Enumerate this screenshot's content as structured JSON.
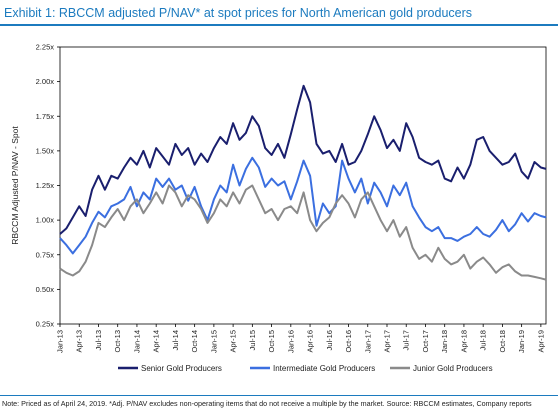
{
  "header": {
    "title": "Exhibit 1: RBCCM adjusted P/NAV* at spot prices for North American gold producers"
  },
  "footnote": "Note: Priced as of April 24, 2019. *Adj. P/NAV excludes non-operating items that do not receive a multiple by the market. Source: RBCCM estimates, Company reports",
  "chart_data": {
    "type": "line",
    "title": "",
    "ylabel": "RBCCM Adjusted P/NAV - Spot",
    "xlabel": "",
    "ylim": [
      0.25,
      2.25
    ],
    "yticks": [
      0.25,
      0.5,
      0.75,
      1.0,
      1.25,
      1.5,
      1.75,
      2.0,
      2.25
    ],
    "ytick_labels": [
      "0.25x",
      "0.50x",
      "0.75x",
      "1.00x",
      "1.25x",
      "1.50x",
      "1.75x",
      "2.00x",
      "2.25x"
    ],
    "xlim": [
      0,
      75.8
    ],
    "x_tick_positions": [
      0,
      3,
      6,
      9,
      12,
      15,
      18,
      21,
      24,
      27,
      30,
      33,
      36,
      39,
      42,
      45,
      48,
      51,
      54,
      57,
      60,
      63,
      66,
      69,
      72,
      75
    ],
    "x_tick_labels": [
      "Jan-13",
      "Apr-13",
      "Jul-13",
      "Oct-13",
      "Jan-14",
      "Apr-14",
      "Jul-14",
      "Oct-14",
      "Jan-15",
      "Apr-15",
      "Jul-15",
      "Oct-15",
      "Jan-16",
      "Apr-16",
      "Jul-16",
      "Oct-16",
      "Jan-17",
      "Apr-17",
      "Jul-17",
      "Oct-17",
      "Jan-18",
      "Apr-18",
      "Jul-18",
      "Oct-18",
      "Jan-19",
      "Apr-19"
    ],
    "grid": false,
    "legend_position": "bottom",
    "series": [
      {
        "name": "Senior Gold Producers",
        "color": "#1a1f6e",
        "points": [
          [
            0,
            0.9
          ],
          [
            1,
            0.94
          ],
          [
            2,
            1.02
          ],
          [
            3,
            1.1
          ],
          [
            4,
            1.03
          ],
          [
            5,
            1.22
          ],
          [
            6,
            1.32
          ],
          [
            7,
            1.22
          ],
          [
            8,
            1.32
          ],
          [
            9,
            1.3
          ],
          [
            10,
            1.38
          ],
          [
            11,
            1.45
          ],
          [
            12,
            1.4
          ],
          [
            13,
            1.5
          ],
          [
            14,
            1.38
          ],
          [
            15,
            1.52
          ],
          [
            16,
            1.46
          ],
          [
            17,
            1.4
          ],
          [
            18,
            1.55
          ],
          [
            19,
            1.47
          ],
          [
            20,
            1.52
          ],
          [
            21,
            1.4
          ],
          [
            22,
            1.48
          ],
          [
            23,
            1.42
          ],
          [
            24,
            1.52
          ],
          [
            25,
            1.6
          ],
          [
            26,
            1.55
          ],
          [
            27,
            1.7
          ],
          [
            28,
            1.58
          ],
          [
            29,
            1.63
          ],
          [
            30,
            1.75
          ],
          [
            31,
            1.68
          ],
          [
            32,
            1.52
          ],
          [
            33,
            1.47
          ],
          [
            34,
            1.55
          ],
          [
            35,
            1.45
          ],
          [
            36,
            1.62
          ],
          [
            37,
            1.8
          ],
          [
            38,
            1.97
          ],
          [
            39,
            1.85
          ],
          [
            40,
            1.55
          ],
          [
            41,
            1.48
          ],
          [
            42,
            1.5
          ],
          [
            43,
            1.42
          ],
          [
            44,
            1.55
          ],
          [
            45,
            1.4
          ],
          [
            46,
            1.42
          ],
          [
            47,
            1.5
          ],
          [
            48,
            1.62
          ],
          [
            49,
            1.75
          ],
          [
            50,
            1.65
          ],
          [
            51,
            1.52
          ],
          [
            52,
            1.58
          ],
          [
            53,
            1.5
          ],
          [
            54,
            1.7
          ],
          [
            55,
            1.6
          ],
          [
            56,
            1.45
          ],
          [
            57,
            1.42
          ],
          [
            58,
            1.4
          ],
          [
            59,
            1.43
          ],
          [
            60,
            1.3
          ],
          [
            61,
            1.28
          ],
          [
            62,
            1.38
          ],
          [
            63,
            1.3
          ],
          [
            64,
            1.4
          ],
          [
            65,
            1.58
          ],
          [
            66,
            1.6
          ],
          [
            67,
            1.5
          ],
          [
            68,
            1.45
          ],
          [
            69,
            1.4
          ],
          [
            70,
            1.42
          ],
          [
            71,
            1.48
          ],
          [
            72,
            1.35
          ],
          [
            73,
            1.3
          ],
          [
            74,
            1.42
          ],
          [
            75,
            1.38
          ],
          [
            75.8,
            1.37
          ]
        ]
      },
      {
        "name": "Intermediate Gold Producers",
        "color": "#3b6fe0",
        "points": [
          [
            0,
            0.87
          ],
          [
            1,
            0.82
          ],
          [
            2,
            0.76
          ],
          [
            3,
            0.82
          ],
          [
            4,
            0.88
          ],
          [
            5,
            0.98
          ],
          [
            6,
            1.06
          ],
          [
            7,
            1.02
          ],
          [
            8,
            1.1
          ],
          [
            9,
            1.12
          ],
          [
            10,
            1.15
          ],
          [
            11,
            1.24
          ],
          [
            12,
            1.1
          ],
          [
            13,
            1.2
          ],
          [
            14,
            1.15
          ],
          [
            15,
            1.3
          ],
          [
            16,
            1.24
          ],
          [
            17,
            1.3
          ],
          [
            18,
            1.22
          ],
          [
            19,
            1.25
          ],
          [
            20,
            1.14
          ],
          [
            21,
            1.24
          ],
          [
            22,
            1.1
          ],
          [
            23,
            1.0
          ],
          [
            24,
            1.15
          ],
          [
            25,
            1.25
          ],
          [
            26,
            1.2
          ],
          [
            27,
            1.4
          ],
          [
            28,
            1.25
          ],
          [
            29,
            1.37
          ],
          [
            30,
            1.45
          ],
          [
            31,
            1.38
          ],
          [
            32,
            1.24
          ],
          [
            33,
            1.3
          ],
          [
            34,
            1.25
          ],
          [
            35,
            1.28
          ],
          [
            36,
            1.15
          ],
          [
            37,
            1.28
          ],
          [
            38,
            1.43
          ],
          [
            39,
            1.32
          ],
          [
            40,
            0.96
          ],
          [
            41,
            1.12
          ],
          [
            42,
            1.05
          ],
          [
            43,
            1.1
          ],
          [
            44,
            1.43
          ],
          [
            45,
            1.3
          ],
          [
            46,
            1.2
          ],
          [
            47,
            1.3
          ],
          [
            48,
            1.12
          ],
          [
            49,
            1.27
          ],
          [
            50,
            1.2
          ],
          [
            51,
            1.1
          ],
          [
            52,
            1.25
          ],
          [
            53,
            1.18
          ],
          [
            54,
            1.27
          ],
          [
            55,
            1.1
          ],
          [
            56,
            1.02
          ],
          [
            57,
            0.95
          ],
          [
            58,
            0.92
          ],
          [
            59,
            0.95
          ],
          [
            60,
            0.87
          ],
          [
            61,
            0.87
          ],
          [
            62,
            0.85
          ],
          [
            63,
            0.88
          ],
          [
            64,
            0.9
          ],
          [
            65,
            0.95
          ],
          [
            66,
            0.9
          ],
          [
            67,
            0.88
          ],
          [
            68,
            0.93
          ],
          [
            69,
            1.0
          ],
          [
            70,
            0.92
          ],
          [
            71,
            0.97
          ],
          [
            72,
            1.05
          ],
          [
            73,
            0.99
          ],
          [
            74,
            1.05
          ],
          [
            75,
            1.03
          ],
          [
            75.8,
            1.02
          ]
        ]
      },
      {
        "name": "Junior Gold Producers",
        "color": "#8a8a8a",
        "points": [
          [
            0,
            0.65
          ],
          [
            1,
            0.62
          ],
          [
            2,
            0.6
          ],
          [
            3,
            0.63
          ],
          [
            4,
            0.7
          ],
          [
            5,
            0.82
          ],
          [
            6,
            0.98
          ],
          [
            7,
            0.95
          ],
          [
            8,
            1.02
          ],
          [
            9,
            1.08
          ],
          [
            10,
            1.0
          ],
          [
            11,
            1.1
          ],
          [
            12,
            1.15
          ],
          [
            13,
            1.05
          ],
          [
            14,
            1.12
          ],
          [
            15,
            1.2
          ],
          [
            16,
            1.12
          ],
          [
            17,
            1.25
          ],
          [
            18,
            1.2
          ],
          [
            19,
            1.1
          ],
          [
            20,
            1.18
          ],
          [
            21,
            1.15
          ],
          [
            22,
            1.08
          ],
          [
            23,
            0.98
          ],
          [
            24,
            1.05
          ],
          [
            25,
            1.15
          ],
          [
            26,
            1.1
          ],
          [
            27,
            1.2
          ],
          [
            28,
            1.12
          ],
          [
            29,
            1.22
          ],
          [
            30,
            1.25
          ],
          [
            31,
            1.15
          ],
          [
            32,
            1.05
          ],
          [
            33,
            1.08
          ],
          [
            34,
            1.0
          ],
          [
            35,
            1.08
          ],
          [
            36,
            1.1
          ],
          [
            37,
            1.05
          ],
          [
            38,
            1.2
          ],
          [
            39,
            1.0
          ],
          [
            40,
            0.92
          ],
          [
            41,
            0.98
          ],
          [
            42,
            1.02
          ],
          [
            43,
            1.12
          ],
          [
            44,
            1.18
          ],
          [
            45,
            1.12
          ],
          [
            46,
            1.02
          ],
          [
            47,
            1.15
          ],
          [
            48,
            1.2
          ],
          [
            49,
            1.1
          ],
          [
            50,
            1.0
          ],
          [
            51,
            0.92
          ],
          [
            52,
            1.0
          ],
          [
            53,
            0.88
          ],
          [
            54,
            0.95
          ],
          [
            55,
            0.8
          ],
          [
            56,
            0.72
          ],
          [
            57,
            0.75
          ],
          [
            58,
            0.7
          ],
          [
            59,
            0.8
          ],
          [
            60,
            0.72
          ],
          [
            61,
            0.68
          ],
          [
            62,
            0.7
          ],
          [
            63,
            0.75
          ],
          [
            64,
            0.65
          ],
          [
            65,
            0.7
          ],
          [
            66,
            0.73
          ],
          [
            67,
            0.68
          ],
          [
            68,
            0.62
          ],
          [
            69,
            0.66
          ],
          [
            70,
            0.68
          ],
          [
            71,
            0.63
          ],
          [
            72,
            0.6
          ],
          [
            73,
            0.6
          ],
          [
            74,
            0.59
          ],
          [
            75,
            0.58
          ],
          [
            75.8,
            0.57
          ]
        ]
      }
    ]
  }
}
